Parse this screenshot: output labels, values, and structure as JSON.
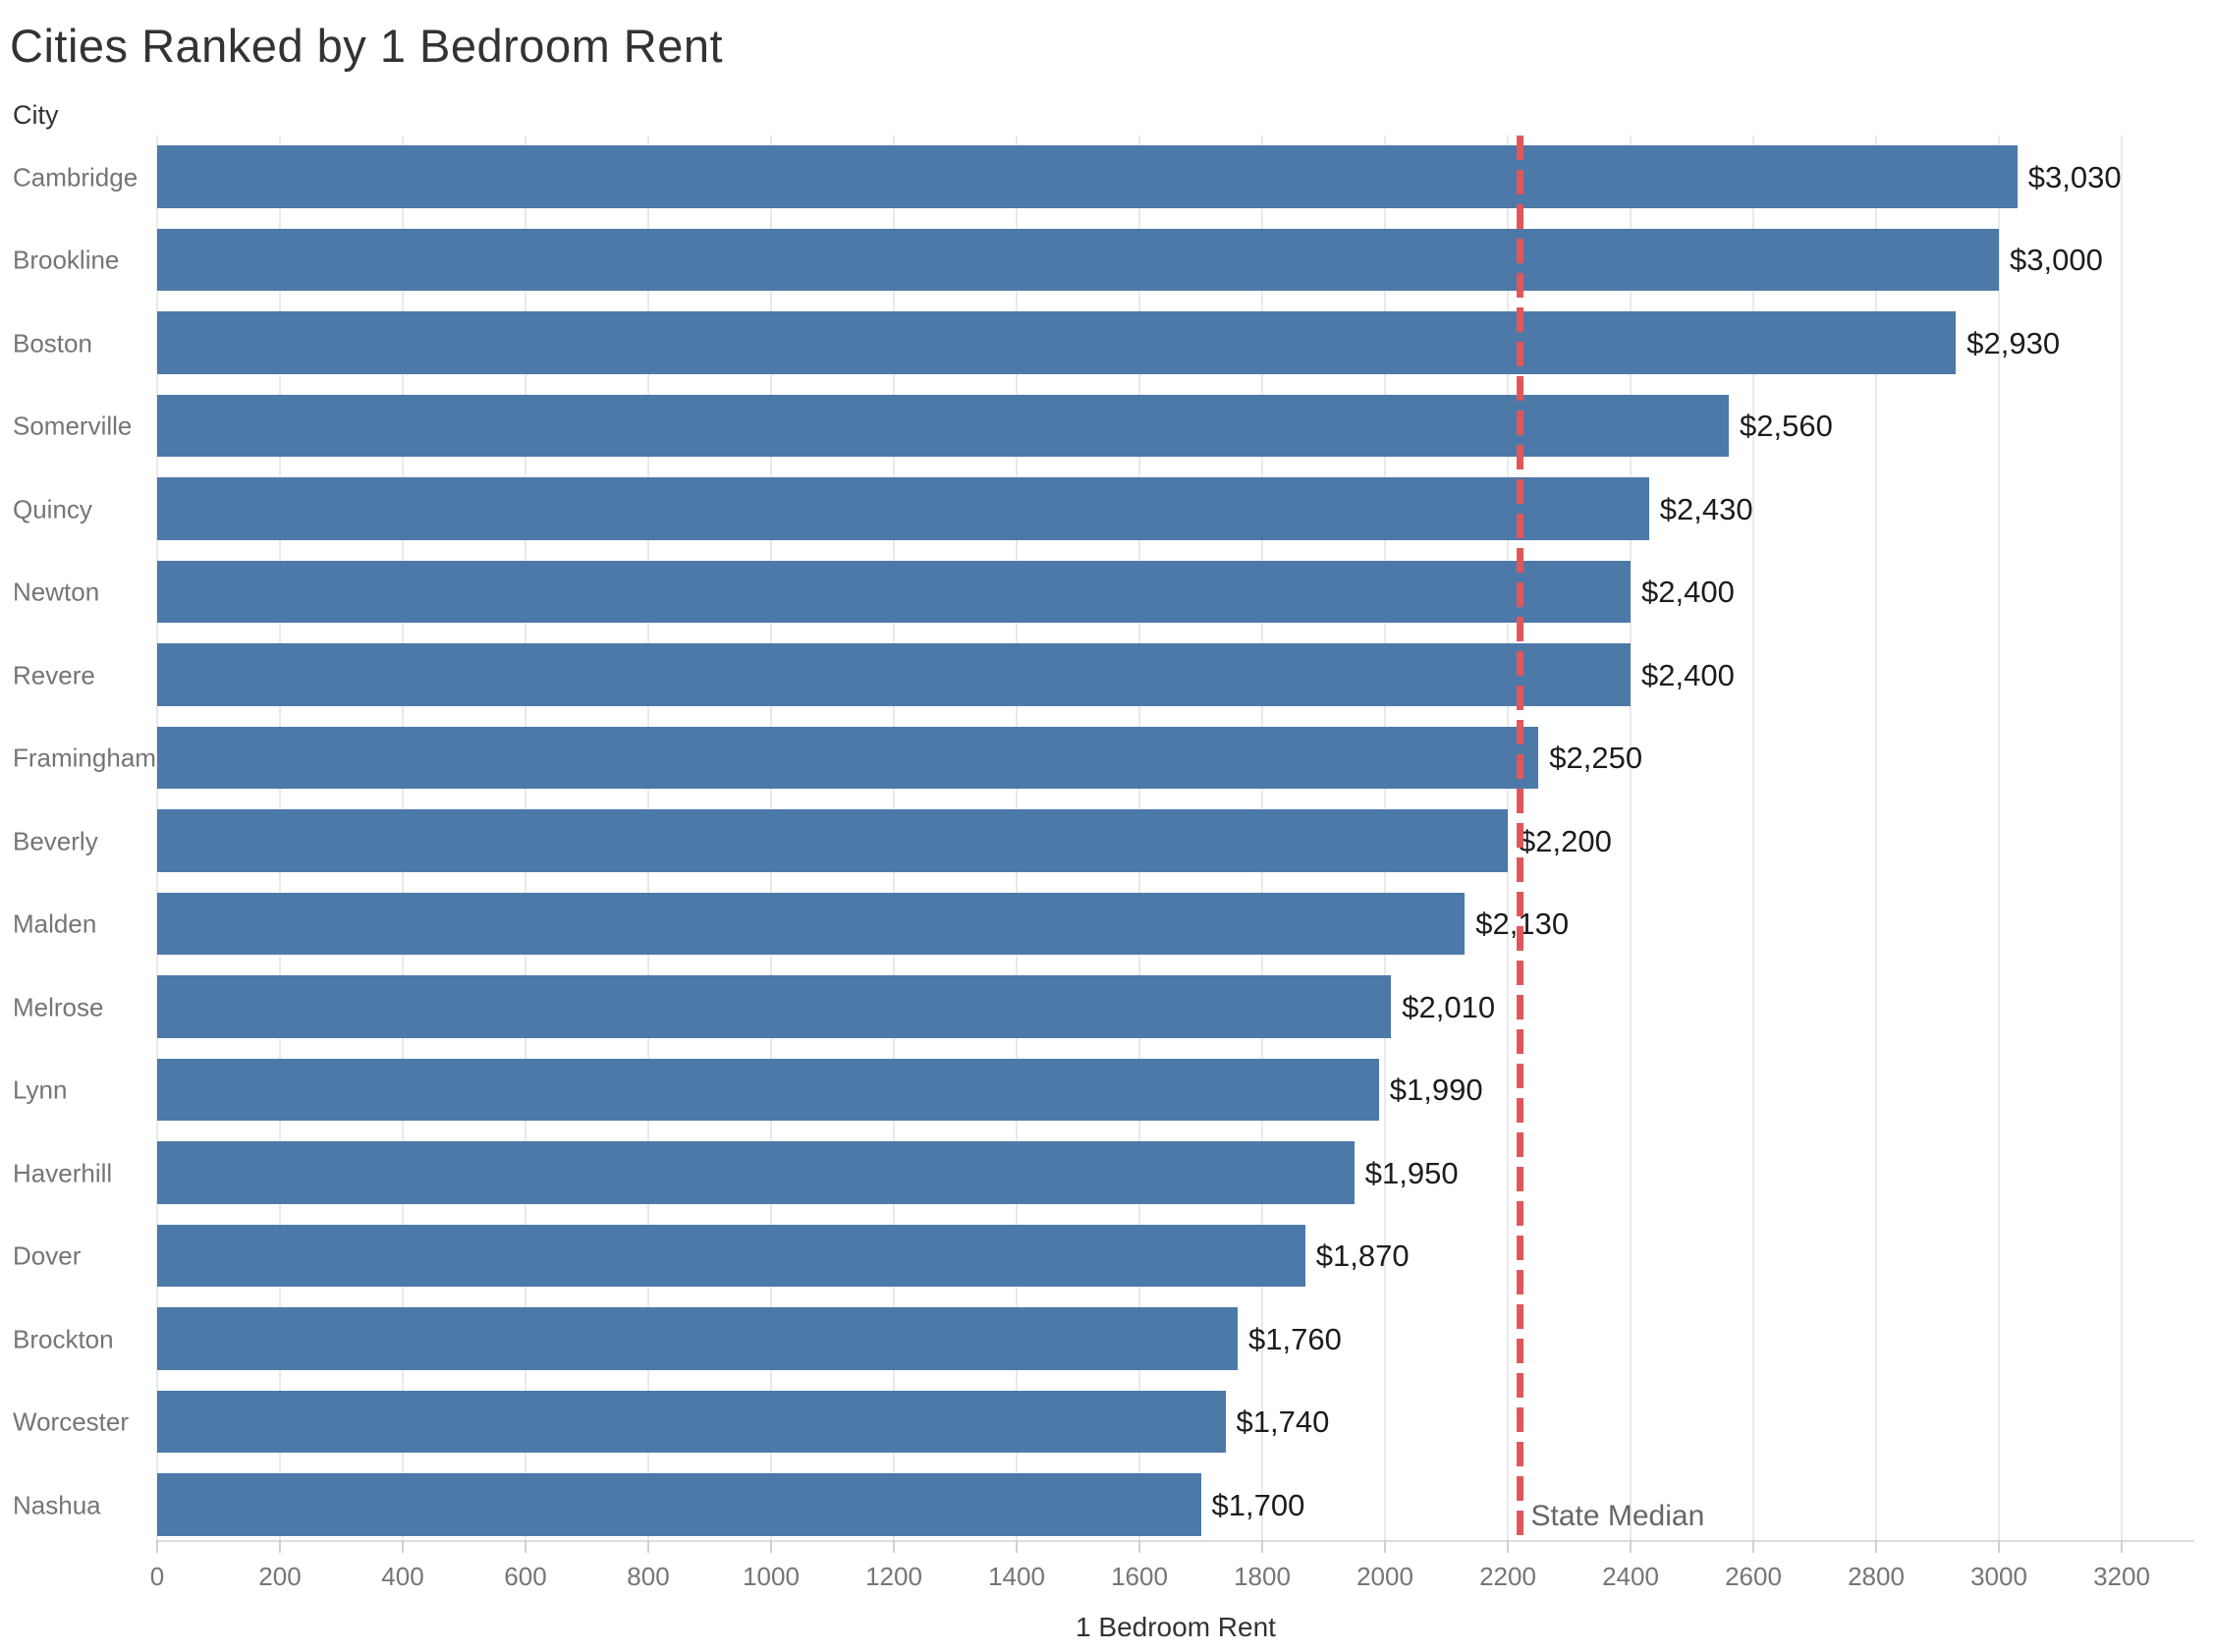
{
  "title": "Cities Ranked by 1 Bedroom Rent",
  "column_header": "City",
  "axis_title": "1 Bedroom Rent",
  "reference_label": "State Median",
  "colors": {
    "bar": "#4d79a8",
    "reference_line": "#e15759",
    "gridline": "#e9e9e9",
    "value_label": "#1c1c1c",
    "category_label": "#757575",
    "heading": "#333333"
  },
  "chart_data": {
    "type": "bar",
    "orientation": "horizontal",
    "title": "Cities Ranked by 1 Bedroom Rent",
    "xlabel": "1 Bedroom Rent",
    "ylabel": "City",
    "categories": [
      "Cambridge",
      "Brookline",
      "Boston",
      "Somerville",
      "Quincy",
      "Newton",
      "Revere",
      "Framingham",
      "Beverly",
      "Malden",
      "Melrose",
      "Lynn",
      "Haverhill",
      "Dover",
      "Brockton",
      "Worcester",
      "Nashua"
    ],
    "values": [
      3030,
      3000,
      2930,
      2560,
      2430,
      2400,
      2400,
      2250,
      2200,
      2130,
      2010,
      1990,
      1950,
      1870,
      1760,
      1740,
      1700
    ],
    "value_labels": [
      "$3,030",
      "$3,000",
      "$2,930",
      "$2,560",
      "$2,430",
      "$2,400",
      "$2,400",
      "$2,250",
      "$2,200",
      "$2,130",
      "$2,010",
      "$1,990",
      "$1,950",
      "$1,870",
      "$1,760",
      "$1,740",
      "$1,700"
    ],
    "x_ticks": [
      0,
      200,
      400,
      600,
      800,
      1000,
      1200,
      1400,
      1600,
      1800,
      2000,
      2200,
      2400,
      2600,
      2800,
      3000,
      3200
    ],
    "xlim": [
      0,
      3318
    ],
    "grid": "vertical",
    "legend": "none",
    "reference_line": {
      "label": "State Median",
      "value": 2220,
      "style": "dashed",
      "color": "#e15759"
    }
  }
}
